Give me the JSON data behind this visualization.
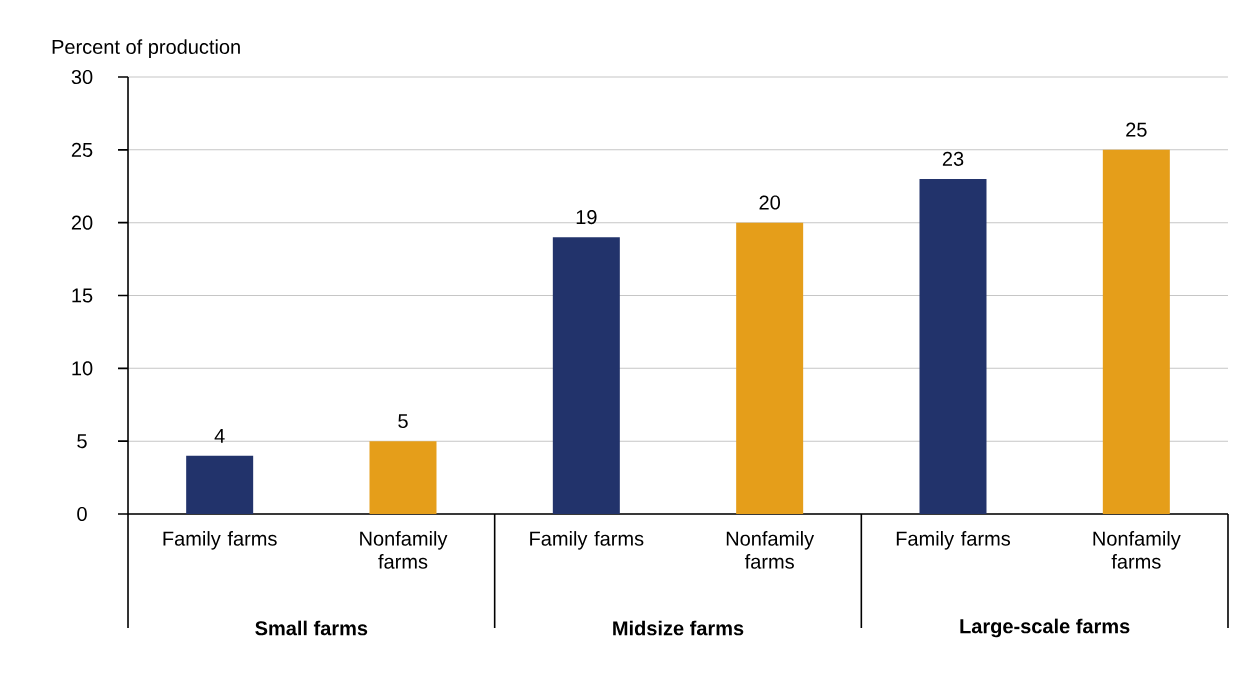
{
  "chart_data": {
    "type": "bar",
    "ylabel": "Percent of production",
    "categories": [
      "Family farms",
      "Nonfamily farms",
      "Family farms",
      "Nonfamily farms",
      "Family farms",
      "Nonfamily farms"
    ],
    "values": [
      4,
      5,
      19,
      20,
      23,
      25
    ],
    "colors": [
      "#22336b",
      "#e59e1a",
      "#22336b",
      "#e59e1a",
      "#22336b",
      "#e59e1a"
    ],
    "ylim": [
      0,
      30
    ],
    "yticks": [
      0,
      5,
      10,
      15,
      20,
      25,
      30
    ],
    "grid": "y",
    "data_labels": true,
    "annotations": [
      "Small farms",
      "Midsize farms",
      "Large-scale farms"
    ]
  }
}
